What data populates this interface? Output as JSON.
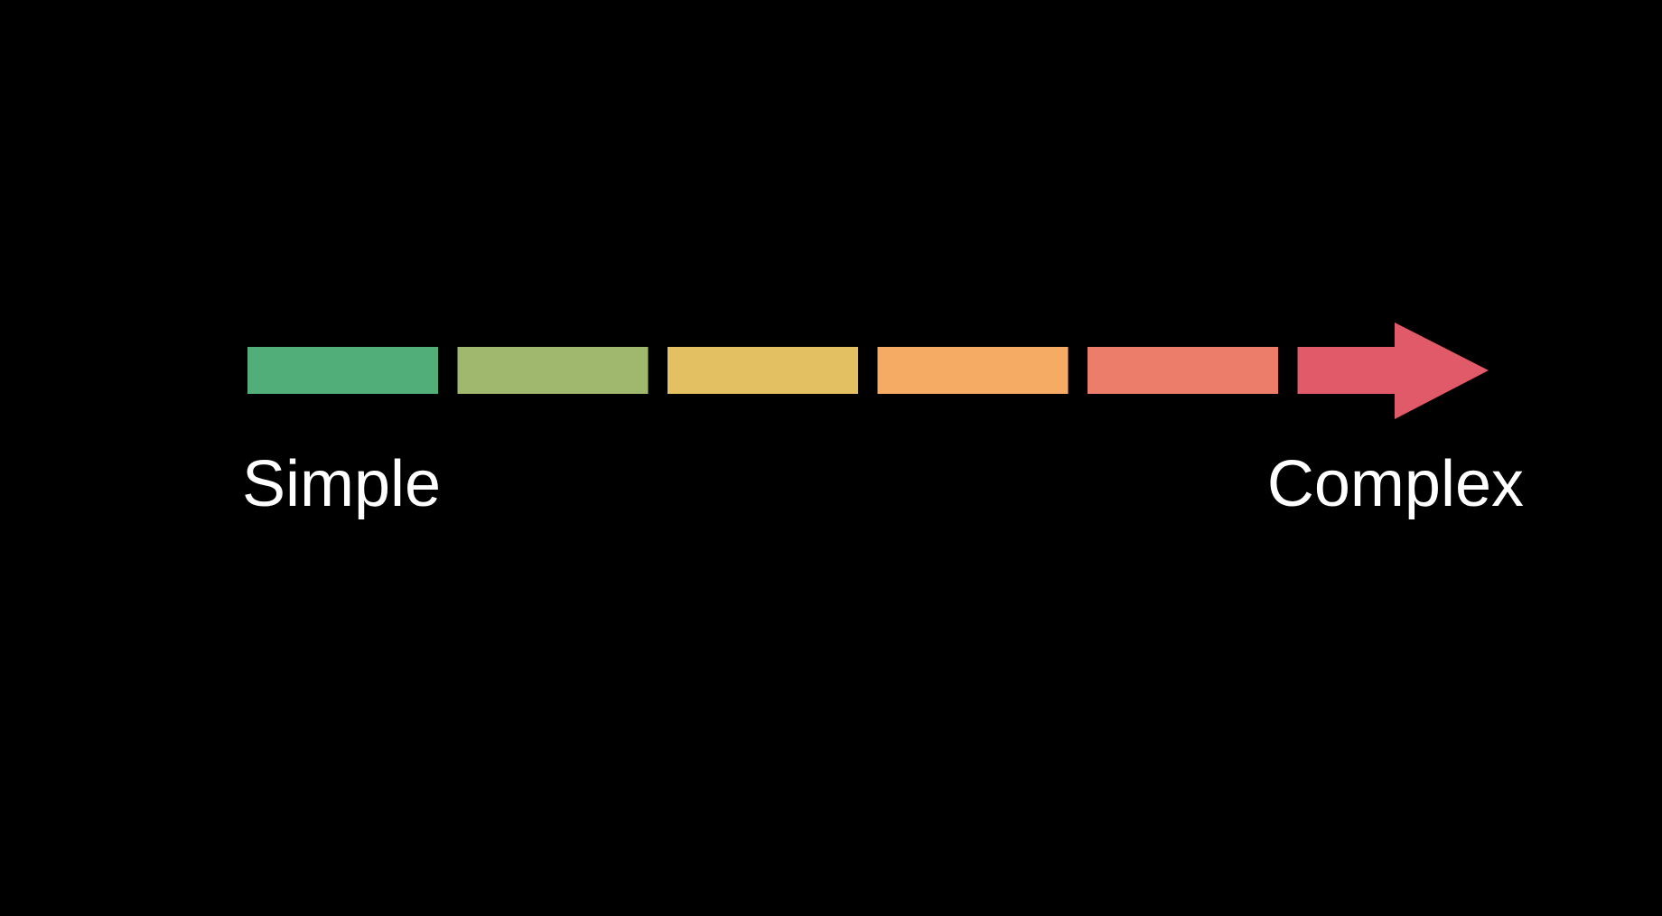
{
  "background": "#000000",
  "scale": {
    "start_label": "Simple",
    "end_label": "Complex",
    "segment_colors": [
      "#52ae78",
      "#a0b86e",
      "#e3c163",
      "#f6ab64",
      "#ec7d6a",
      "#e15a69"
    ],
    "label_color": "#ffffff"
  }
}
